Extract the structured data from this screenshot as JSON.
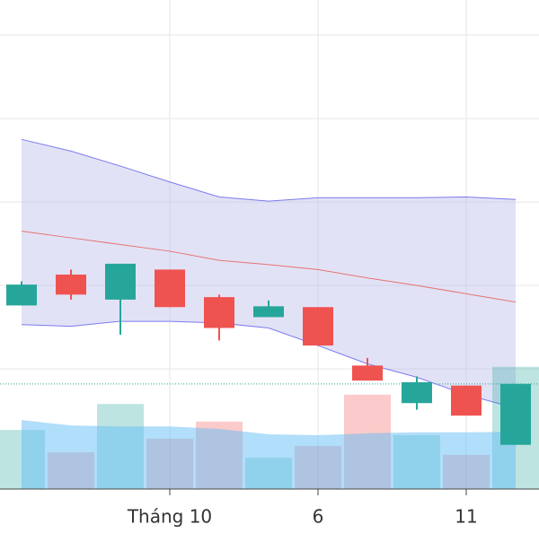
{
  "chart_data": {
    "type": "candlestick",
    "categories": [
      null,
      null,
      null,
      "Tháng 10",
      null,
      null,
      "6",
      null,
      null,
      "11",
      null
    ],
    "open": [
      17.6,
      21.3,
      18.3,
      21.9,
      18.6,
      16.2,
      17.4,
      10.4,
      5.9,
      8.0,
      0.9
    ],
    "high": [
      20.5,
      21.9,
      22.6,
      21.9,
      18.9,
      18.2,
      17.4,
      11.3,
      9.1,
      8.0,
      8.2
    ],
    "low": [
      17.6,
      18.3,
      14.1,
      17.4,
      13.4,
      16.2,
      12.8,
      8.6,
      5.1,
      4.4,
      0.9
    ],
    "close": [
      20.1,
      18.9,
      22.6,
      17.4,
      14.9,
      17.5,
      12.8,
      8.6,
      8.4,
      4.4,
      8.2
    ],
    "up_color": "#26a69a",
    "down_color": "#ef5350",
    "ylim": [
      -4.4,
      54.2
    ],
    "yticks": [
      10,
      20,
      30,
      40,
      50
    ],
    "grid": true,
    "series": [
      {
        "name": "upper",
        "color": "#7b7bef",
        "values": [
          37.5,
          36.1,
          34.3,
          32.4,
          30.6,
          30.1,
          30.5,
          30.5,
          30.5,
          30.6,
          30.3
        ]
      },
      {
        "name": "middle",
        "color": "#e57373",
        "values": [
          26.5,
          25.7,
          24.9,
          24.1,
          23.0,
          22.5,
          21.9,
          20.9,
          20.0,
          19.0,
          18.0
        ]
      },
      {
        "name": "lower",
        "color": "#7b7bef",
        "values": [
          15.3,
          15.1,
          15.7,
          15.7,
          15.5,
          14.9,
          12.8,
          10.6,
          9.0,
          6.9,
          5.3
        ]
      }
    ],
    "band_fill": "rgba(190,190,235,0.45)",
    "volume": [
      12.1,
      7.5,
      17.4,
      10.3,
      13.8,
      6.4,
      8.8,
      19.3,
      11.0,
      7.0,
      25.0
    ],
    "volume_ma": [
      14.1,
      13.0,
      12.8,
      12.8,
      12.3,
      11.2,
      11.0,
      11.4,
      11.6,
      11.6,
      11.7
    ],
    "volume_ma_color": "rgba(100,190,245,0.5)",
    "y2lim": [
      0,
      100
    ]
  }
}
